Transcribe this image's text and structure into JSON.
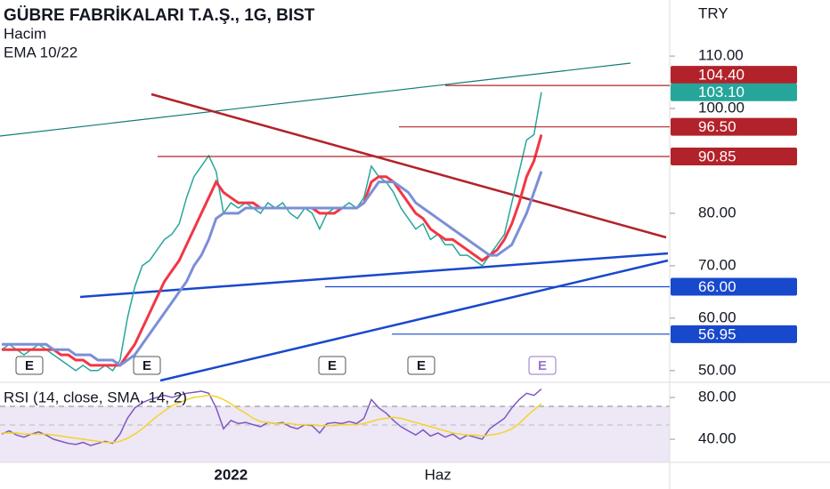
{
  "chart_data": {
    "type": "line",
    "title": "GÜBRE FABRİKALARI T.A.Ş., 1G, BIST",
    "subtitles": [
      "Hacim",
      "EMA 10/22"
    ],
    "currency": "TRY",
    "categories": [
      null,
      null,
      null,
      null,
      null,
      null,
      null,
      null,
      null,
      null,
      null,
      null,
      null,
      null,
      null,
      null,
      null,
      null,
      null,
      null,
      null,
      null,
      null,
      null,
      null,
      null,
      null,
      null,
      null,
      null,
      null,
      "2022",
      null,
      null,
      null,
      null,
      null,
      null,
      null,
      null,
      null,
      null,
      null,
      null,
      null,
      null,
      null,
      null,
      null,
      null,
      null,
      null,
      null,
      null,
      null,
      null,
      null,
      null,
      null,
      "Haz",
      null,
      null,
      null,
      null,
      null,
      null,
      null,
      null,
      null,
      null,
      null,
      null,
      null,
      null
    ],
    "series": [
      {
        "color": "#26a69a",
        "values": [
          54,
          55,
          54,
          53,
          54,
          55,
          54,
          53,
          52,
          51,
          50,
          51,
          50,
          50,
          51,
          50,
          52,
          60,
          66,
          70,
          71,
          73,
          75,
          76,
          78,
          83,
          87,
          89,
          91,
          88,
          80,
          82,
          81,
          82,
          81,
          80,
          82,
          81,
          82,
          80,
          79,
          81,
          80,
          77,
          80,
          81,
          81,
          82,
          81,
          83,
          89,
          87,
          86,
          84,
          81,
          79,
          77,
          78,
          75,
          76,
          74,
          74,
          72,
          72,
          71,
          70,
          72,
          74,
          76,
          82,
          88,
          94,
          95,
          103.1
        ]
      },
      {
        "color": "#f23645",
        "values": [
          54,
          54,
          54,
          54,
          54,
          54,
          54,
          54,
          53,
          53,
          52,
          52,
          51,
          51,
          51,
          51,
          51,
          53,
          55,
          58,
          61,
          64,
          67,
          69,
          71,
          74,
          77,
          80,
          83,
          86,
          84,
          83,
          82,
          82,
          82,
          81,
          81,
          81,
          81,
          81,
          81,
          81,
          81,
          80,
          80,
          80,
          81,
          81,
          81,
          82,
          86,
          87,
          87,
          86,
          84,
          82,
          80,
          79,
          77,
          76,
          75,
          75,
          74,
          73,
          72,
          71,
          72,
          73,
          75,
          78,
          82,
          87,
          90,
          95
        ]
      },
      {
        "color": "#7b8fd6",
        "values": [
          55,
          55,
          55,
          55,
          55,
          55,
          55,
          54,
          54,
          54,
          53,
          53,
          53,
          52,
          52,
          52,
          51,
          52,
          53,
          55,
          57,
          59,
          61,
          63,
          65,
          67,
          70,
          72,
          75,
          79,
          80,
          80,
          80,
          81,
          81,
          81,
          81,
          81,
          81,
          81,
          81,
          81,
          81,
          81,
          81,
          81,
          81,
          81,
          81,
          82,
          84,
          86,
          86,
          86,
          85,
          84,
          82,
          81,
          80,
          79,
          78,
          77,
          76,
          75,
          74,
          73,
          72,
          72,
          73,
          74,
          77,
          80,
          84,
          88
        ]
      }
    ],
    "ylim": [
      48.1,
      120.7
    ],
    "yticks": [
      {
        "value": 50,
        "label": "50.00"
      },
      {
        "value": 60,
        "label": "60.00"
      },
      {
        "value": 70,
        "label": "70.00"
      },
      {
        "value": 80,
        "label": "80.00"
      },
      {
        "value": 100,
        "label": "100.00"
      },
      {
        "value": 110,
        "label": "110.00"
      }
    ],
    "price_labels": [
      {
        "value": 104.4,
        "label": "104.40",
        "color": "#b2222a"
      },
      {
        "value": 103.1,
        "label": "103.10",
        "color": "#26a69a"
      },
      {
        "value": 96.5,
        "label": "96.50",
        "color": "#b2222a"
      },
      {
        "value": 90.85,
        "label": "90.85",
        "color": "#b2222a"
      },
      {
        "value": 66,
        "label": "66.00",
        "color": "#1848cc"
      },
      {
        "value": 56.95,
        "label": "56.95",
        "color": "#1848cc"
      }
    ],
    "events": [
      "E",
      "E",
      "E",
      "E",
      "E"
    ],
    "rsi": {
      "title": "RSI (14, close, SMA, 14, 2)",
      "series": [
        {
          "color": "#7e57c2",
          "values": [
            45,
            48,
            44,
            42,
            45,
            47,
            44,
            40,
            38,
            36,
            35,
            37,
            34,
            36,
            38,
            36,
            45,
            60,
            70,
            75,
            78,
            80,
            82,
            80,
            82,
            84,
            85,
            86,
            84,
            70,
            50,
            58,
            55,
            56,
            54,
            52,
            56,
            55,
            56,
            52,
            50,
            54,
            53,
            46,
            55,
            56,
            55,
            57,
            55,
            60,
            78,
            70,
            65,
            58,
            52,
            48,
            44,
            49,
            43,
            46,
            42,
            45,
            40,
            44,
            42,
            40,
            50,
            55,
            60,
            70,
            78,
            84,
            82,
            88
          ]
        },
        {
          "color": "#f5d327",
          "values": [
            46,
            46,
            46,
            45,
            45,
            45,
            45,
            44,
            43,
            42,
            41,
            40,
            39,
            38,
            37,
            37,
            38,
            41,
            45,
            50,
            56,
            62,
            67,
            72,
            75,
            78,
            80,
            81,
            82,
            81,
            78,
            74,
            69,
            65,
            60,
            57,
            56,
            55,
            55,
            55,
            54,
            54,
            54,
            53,
            53,
            53,
            54,
            54,
            54,
            55,
            57,
            59,
            60,
            61,
            60,
            58,
            56,
            54,
            52,
            50,
            48,
            46,
            45,
            44,
            44,
            43,
            44,
            45,
            47,
            50,
            55,
            62,
            68,
            74
          ]
        }
      ],
      "ylim": [
        17.9,
        94.5
      ],
      "yticks": [
        {
          "value": 40,
          "label": "40.00"
        },
        {
          "value": 80,
          "label": "80.00"
        }
      ]
    }
  }
}
